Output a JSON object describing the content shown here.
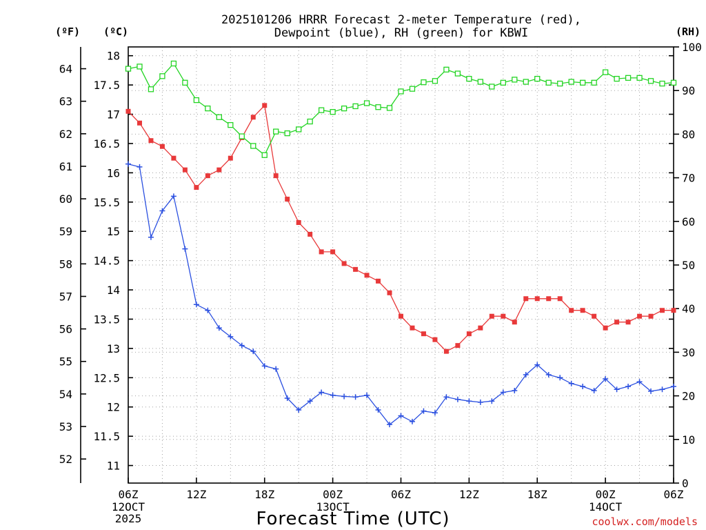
{
  "title_line1": "2025101206 HRRR Forecast 2-meter Temperature (red),",
  "title_line2": "Dewpoint (blue), RH (green) for KBWI",
  "units": {
    "fahrenheit": "(ºF)",
    "celsius": "(ºC)",
    "rh": "(RH)"
  },
  "xlabel": "Forecast Time (UTC)",
  "credit": "coolwx.com/models",
  "colors": {
    "temperature": "#e8393a",
    "dewpoint": "#2a4fe0",
    "rh": "#22d422",
    "grid": "#a0a0a0"
  },
  "chart_data": {
    "type": "line",
    "hours_start": 0,
    "hours_step": 1,
    "x_ticks": [
      {
        "hour": 0,
        "label": "06Z",
        "sub1": "12OCT",
        "sub2": "2025"
      },
      {
        "hour": 6,
        "label": "12Z",
        "sub1": "",
        "sub2": ""
      },
      {
        "hour": 12,
        "label": "18Z",
        "sub1": "",
        "sub2": ""
      },
      {
        "hour": 18,
        "label": "00Z",
        "sub1": "13OCT",
        "sub2": ""
      },
      {
        "hour": 24,
        "label": "06Z",
        "sub1": "",
        "sub2": ""
      },
      {
        "hour": 30,
        "label": "12Z",
        "sub1": "",
        "sub2": ""
      },
      {
        "hour": 36,
        "label": "18Z",
        "sub1": "",
        "sub2": ""
      },
      {
        "hour": 42,
        "label": "00Z",
        "sub1": "14OCT",
        "sub2": ""
      },
      {
        "hour": 48,
        "label": "06Z",
        "sub1": "",
        "sub2": ""
      }
    ],
    "xlim": [
      0,
      48
    ],
    "ylim_celsius": [
      10.7,
      18.15
    ],
    "ylim_rh": [
      0,
      100
    ],
    "celsius_ticks": [
      11,
      11.5,
      12,
      12.5,
      13,
      13.5,
      14,
      14.5,
      15,
      15.5,
      16,
      16.5,
      17,
      17.5,
      18
    ],
    "fahrenheit_ticks": [
      52,
      53,
      54,
      55,
      56,
      57,
      58,
      59,
      60,
      61,
      62,
      63,
      64
    ],
    "rh_ticks": [
      0,
      10,
      20,
      30,
      40,
      50,
      60,
      70,
      80,
      90,
      100
    ],
    "grid": true,
    "series": [
      {
        "name": "Temperature",
        "axis": "celsius",
        "marker": "filled-square",
        "values": [
          17.05,
          16.85,
          16.55,
          16.45,
          16.25,
          16.05,
          15.75,
          15.95,
          16.05,
          16.25,
          16.6,
          16.95,
          17.15,
          15.95,
          15.55,
          15.15,
          14.95,
          14.65,
          14.65,
          14.45,
          14.35,
          14.25,
          14.15,
          13.95,
          13.55,
          13.35,
          13.25,
          13.15,
          12.95,
          13.05,
          13.25,
          13.35,
          13.55,
          13.55,
          13.45,
          13.85,
          13.85,
          13.85,
          13.85,
          13.65,
          13.65,
          13.55,
          13.35,
          13.45,
          13.45,
          13.55,
          13.55,
          13.65,
          13.65
        ]
      },
      {
        "name": "Dewpoint",
        "axis": "celsius",
        "marker": "plus",
        "values": [
          16.15,
          16.1,
          14.9,
          15.35,
          15.6,
          14.7,
          13.75,
          13.65,
          13.35,
          13.2,
          13.05,
          12.95,
          12.7,
          12.65,
          12.15,
          11.95,
          12.1,
          12.25,
          12.2,
          12.18,
          12.17,
          12.2,
          11.95,
          11.7,
          11.85,
          11.75,
          11.93,
          11.9,
          12.17,
          12.13,
          12.1,
          12.08,
          12.1,
          12.25,
          12.28,
          12.55,
          12.72,
          12.55,
          12.5,
          12.4,
          12.35,
          12.28,
          12.48,
          12.3,
          12.35,
          12.43,
          12.27,
          12.3,
          12.35
        ]
      },
      {
        "name": "RH",
        "axis": "rh",
        "marker": "open-square",
        "values": [
          95,
          95.5,
          90.3,
          93.3,
          96.2,
          91.8,
          87.8,
          85.9,
          83.9,
          82.1,
          79.5,
          77.3,
          75.2,
          80.6,
          80.2,
          81.1,
          82.9,
          85.5,
          85.1,
          85.9,
          86.4,
          87.1,
          86.2,
          86,
          89.8,
          90.4,
          91.9,
          92.2,
          94.8,
          93.9,
          92.7,
          92,
          90.9,
          91.8,
          92.5,
          92,
          92.7,
          91.8,
          91.6,
          92,
          91.8,
          91.8,
          94.2,
          92.7,
          92.9,
          92.9,
          92.2,
          91.6,
          91.8
        ]
      }
    ]
  }
}
